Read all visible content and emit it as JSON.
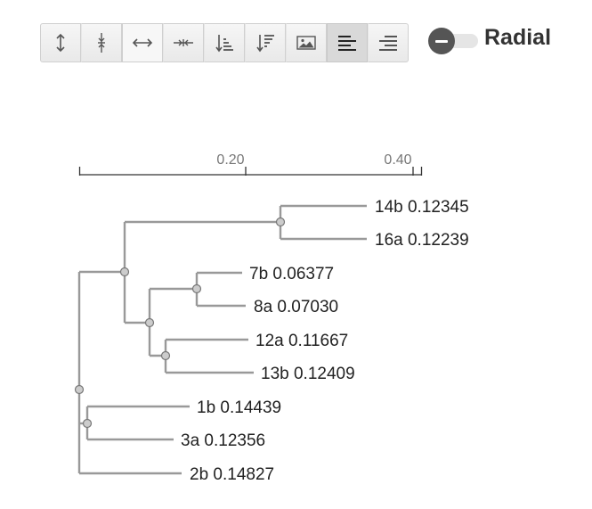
{
  "toolbar": {
    "buttons": [
      {
        "name": "expand-vertical-button",
        "icon": "expand-vertical-icon",
        "state": "normal"
      },
      {
        "name": "compress-vertical-button",
        "icon": "compress-vertical-icon",
        "state": "normal"
      },
      {
        "name": "expand-horizontal-button",
        "icon": "expand-horizontal-icon",
        "state": "hover"
      },
      {
        "name": "compress-horizontal-button",
        "icon": "compress-horizontal-icon",
        "state": "normal"
      },
      {
        "name": "sort-ascending-button",
        "icon": "sort-ascending-icon",
        "state": "normal"
      },
      {
        "name": "sort-descending-button",
        "icon": "sort-descending-icon",
        "state": "normal"
      },
      {
        "name": "save-image-button",
        "icon": "image-icon",
        "state": "normal"
      },
      {
        "name": "align-left-button",
        "icon": "align-left-icon",
        "state": "active"
      },
      {
        "name": "align-right-button",
        "icon": "align-right-icon",
        "state": "normal"
      }
    ]
  },
  "radial_toggle": {
    "label": "Radial",
    "on": false
  },
  "colors": {
    "branch": "#999999",
    "node_fill": "#cccccc",
    "node_stroke": "#777777",
    "axis": "#333333",
    "tick_label": "#777777",
    "leaf_label": "#222222"
  },
  "scale_axis": {
    "ticks": [
      {
        "value": 0.2,
        "label": "0.20"
      },
      {
        "value": 0.4,
        "label": "0.40"
      }
    ]
  },
  "tree": {
    "leaves": [
      {
        "label": "14b 0.12345"
      },
      {
        "label": "16a 0.12239"
      },
      {
        "label": "7b 0.06377"
      },
      {
        "label": "8a 0.07030"
      },
      {
        "label": "12a 0.11667"
      },
      {
        "label": "13b 0.12409"
      },
      {
        "label": "1b 0.14439"
      },
      {
        "label": "3a 0.12356"
      },
      {
        "label": "2b 0.14827"
      }
    ]
  }
}
